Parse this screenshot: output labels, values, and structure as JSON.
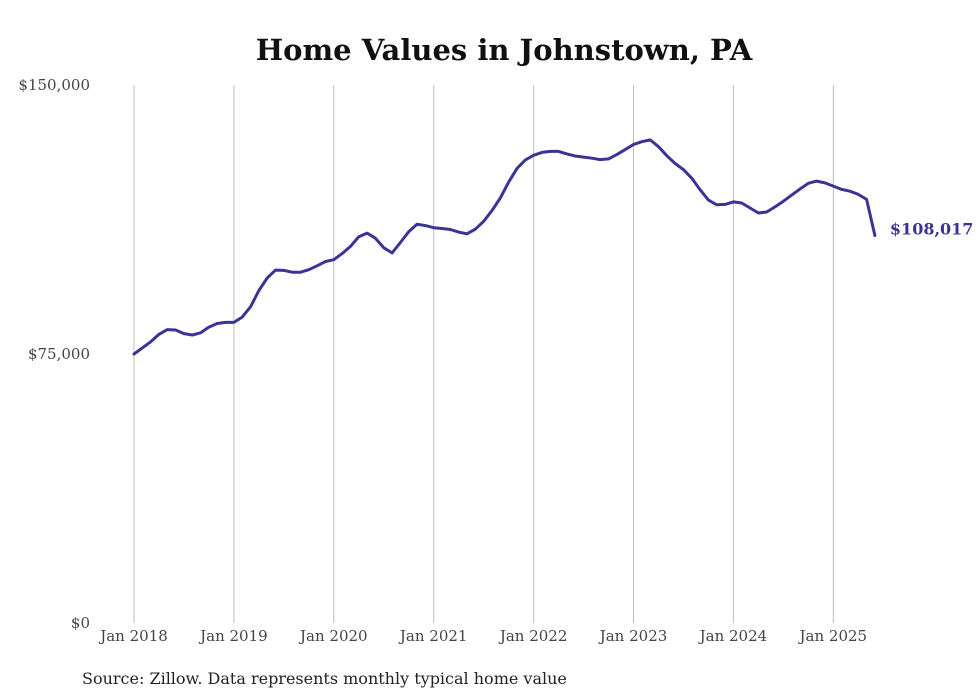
{
  "chart_data": {
    "type": "line",
    "title": "Home Values in Johnstown, PA",
    "source": "Source: Zillow. Data represents monthly typical home value",
    "ylim": [
      0,
      150000
    ],
    "yticks": [
      0,
      75000,
      150000
    ],
    "ytick_labels": [
      "$0",
      "$75,000",
      "$150,000"
    ],
    "xlim": [
      2018.0,
      2025.4167
    ],
    "xticks": [
      2018,
      2019,
      2020,
      2021,
      2022,
      2023,
      2024,
      2025
    ],
    "xtick_labels": [
      "Jan 2018",
      "Jan 2019",
      "Jan 2020",
      "Jan 2021",
      "Jan 2022",
      "Jan 2023",
      "Jan 2024",
      "Jan 2025"
    ],
    "grid": "vertical",
    "line_color": "#3b3497",
    "end_label": "$108,017",
    "series": [
      {
        "name": "Typical home value",
        "x_start": 2018.0,
        "x_step_months": 1,
        "values": [
          75000,
          76700,
          78400,
          80500,
          81800,
          81700,
          80700,
          80300,
          80900,
          82500,
          83500,
          83800,
          83800,
          85300,
          88200,
          92700,
          96200,
          98400,
          98300,
          97800,
          97800,
          98500,
          99600,
          100800,
          101300,
          103000,
          105000,
          107700,
          108700,
          107300,
          104600,
          103200,
          106100,
          109100,
          111200,
          110800,
          110200,
          110000,
          109700,
          109000,
          108500,
          109800,
          112000,
          115000,
          118500,
          122900,
          126700,
          129100,
          130400,
          131200,
          131500,
          131500,
          130800,
          130200,
          129900,
          129600,
          129200,
          129400,
          130600,
          132000,
          133400,
          134200,
          134700,
          132800,
          130300,
          128100,
          126400,
          124000,
          120800,
          117900,
          116600,
          116700,
          117400,
          117100,
          115700,
          114300,
          114600,
          116000,
          117600,
          119300,
          121000,
          122600,
          123200,
          122700,
          121800,
          120900,
          120400,
          119500,
          118100,
          108017
        ]
      }
    ]
  }
}
